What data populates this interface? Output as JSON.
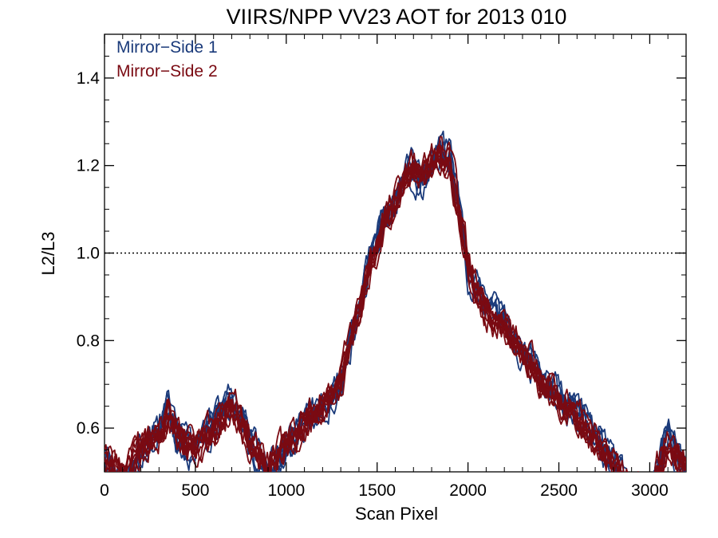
{
  "chart_data": {
    "type": "line",
    "title": "VIIRS/NPP VV23 AOT for 2013 010",
    "xlabel": "Scan Pixel",
    "ylabel": "L2/L3",
    "xlim": [
      0,
      3200
    ],
    "ylim": [
      0.5,
      1.5
    ],
    "x_ticks": [
      0,
      500,
      1000,
      1500,
      2000,
      2500,
      3000
    ],
    "y_ticks": [
      0.6,
      0.8,
      1.0,
      1.2,
      1.4
    ],
    "x_tick_labels": [
      "0",
      "500",
      "1000",
      "1500",
      "2000",
      "2500",
      "3000"
    ],
    "y_tick_labels": [
      "0.6",
      "0.8",
      "1.0",
      "1.2",
      "1.4"
    ],
    "reference_line": {
      "y": 1.0,
      "style": "dotted"
    },
    "legend_position": "top-left",
    "series": [
      {
        "name": "Mirror−Side 1",
        "color": "#1a3a7a",
        "x": [
          0,
          100,
          200,
          300,
          350,
          400,
          500,
          600,
          700,
          800,
          900,
          1000,
          1100,
          1200,
          1300,
          1350,
          1400,
          1450,
          1500,
          1550,
          1600,
          1650,
          1700,
          1750,
          1800,
          1850,
          1900,
          1950,
          2000,
          2050,
          2100,
          2200,
          2300,
          2400,
          2500,
          2600,
          2700,
          2800,
          2900,
          3000,
          3100,
          3200
        ],
        "y": [
          0.52,
          0.47,
          0.55,
          0.6,
          0.66,
          0.58,
          0.55,
          0.62,
          0.68,
          0.58,
          0.5,
          0.56,
          0.62,
          0.65,
          0.7,
          0.78,
          0.88,
          0.97,
          1.03,
          1.1,
          1.12,
          1.18,
          1.2,
          1.17,
          1.22,
          1.24,
          1.22,
          1.12,
          0.97,
          0.92,
          0.88,
          0.85,
          0.78,
          0.72,
          0.68,
          0.64,
          0.58,
          0.53,
          0.45,
          0.44,
          0.6,
          0.5
        ]
      },
      {
        "name": "Mirror−Side 2",
        "color": "#7a0a12",
        "x": [
          0,
          100,
          200,
          300,
          350,
          400,
          500,
          600,
          700,
          800,
          900,
          1000,
          1100,
          1200,
          1300,
          1350,
          1400,
          1450,
          1500,
          1550,
          1600,
          1650,
          1700,
          1750,
          1800,
          1850,
          1900,
          1950,
          2000,
          2050,
          2100,
          2200,
          2300,
          2400,
          2500,
          2600,
          2700,
          2800,
          2900,
          3000,
          3100,
          3200
        ],
        "y": [
          0.53,
          0.49,
          0.56,
          0.59,
          0.64,
          0.59,
          0.56,
          0.6,
          0.66,
          0.57,
          0.51,
          0.57,
          0.61,
          0.66,
          0.71,
          0.8,
          0.87,
          0.96,
          1.02,
          1.08,
          1.11,
          1.17,
          1.19,
          1.18,
          1.21,
          1.23,
          1.21,
          1.1,
          0.98,
          0.91,
          0.87,
          0.84,
          0.77,
          0.71,
          0.67,
          0.63,
          0.57,
          0.52,
          0.46,
          0.45,
          0.57,
          0.51
        ]
      }
    ]
  }
}
